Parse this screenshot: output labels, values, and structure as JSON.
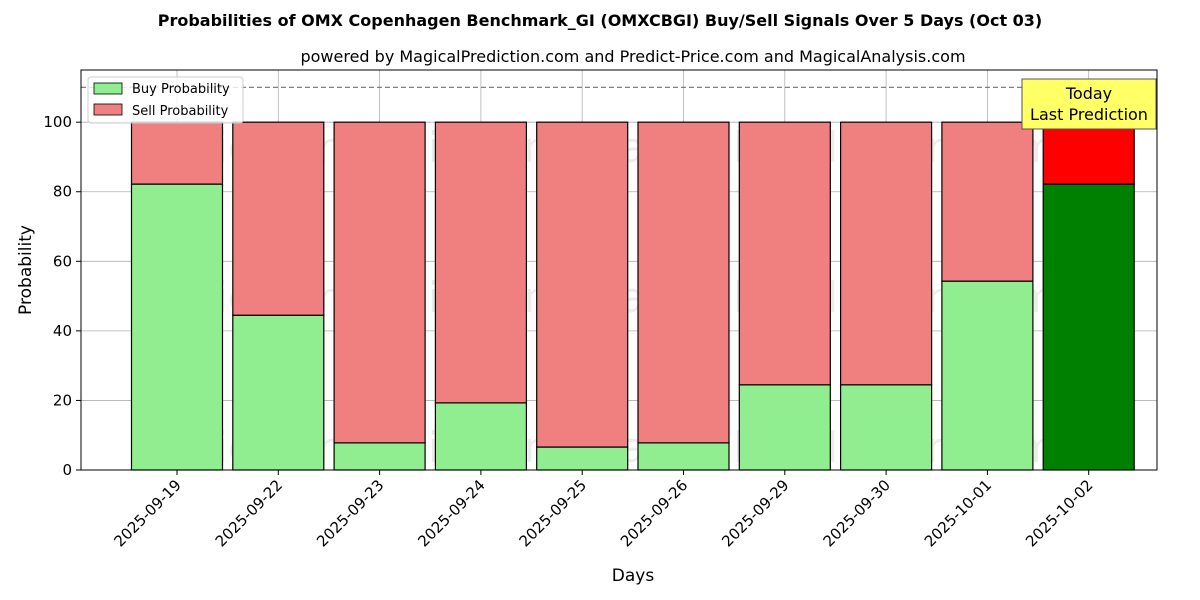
{
  "chart_data": {
    "type": "bar",
    "stacked": true,
    "title": "Probabilities of OMX Copenhagen Benchmark_GI (OMXCBGI) Buy/Sell Signals Over 5 Days (Oct 03)",
    "subtitle": "powered by MagicalPrediction.com and Predict-Price.com and MagicalAnalysis.com",
    "xlabel": "Days",
    "ylabel": "Probability",
    "ylim": [
      0,
      115
    ],
    "yticks": [
      0,
      20,
      40,
      60,
      80,
      100
    ],
    "grid": true,
    "legend_position": "top-left",
    "reference_line": 110,
    "categories": [
      "2025-09-19",
      "2025-09-22",
      "2025-09-23",
      "2025-09-24",
      "2025-09-25",
      "2025-09-26",
      "2025-09-29",
      "2025-09-30",
      "2025-10-01",
      "2025-10-02"
    ],
    "series": [
      {
        "name": "Buy Probability",
        "values": [
          82.2,
          44.5,
          7.8,
          19.3,
          6.6,
          7.8,
          24.5,
          24.5,
          54.3,
          82.2
        ],
        "color": "#90ee90",
        "highlight_color": "#008000"
      },
      {
        "name": "Sell Probability",
        "values": [
          17.8,
          55.5,
          92.2,
          80.7,
          93.4,
          92.2,
          75.5,
          75.5,
          45.7,
          17.8
        ],
        "color": "#f08080",
        "highlight_color": "#ff0000"
      }
    ],
    "highlight_index": 9,
    "annotation": {
      "line1": "Today",
      "line2": "Last Prediction",
      "color": "#ffff66"
    },
    "watermarks": [
      "MagicalAnalysis.com",
      "MagicalPrediction.com"
    ]
  }
}
